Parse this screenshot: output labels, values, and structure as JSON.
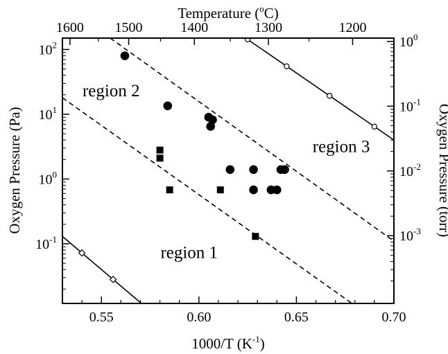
{
  "chart_data": {
    "type": "scatter",
    "xlabel": "1000/T (K",
    "xlabel_sup": "-1",
    "xlabel_tail": ")",
    "ylabel_left": "Oxygen Pressure (Pa)",
    "ylabel_right": "Oxygen Pressure (torr)",
    "top_label_pre": "Temperature (",
    "top_label_sup": "o",
    "top_label_post": "C)",
    "xlim": [
      0.53,
      0.7
    ],
    "ylim_pa": [
      0.012,
      150
    ],
    "x_ticks": [
      {
        "v": 0.55,
        "label": "0.55"
      },
      {
        "v": 0.6,
        "label": "0.60"
      },
      {
        "v": 0.65,
        "label": "0.65"
      },
      {
        "v": 0.7,
        "label": "0.70"
      }
    ],
    "top_ticks": [
      {
        "t": 1600,
        "label": "1600"
      },
      {
        "t": 1500,
        "label": "1500"
      },
      {
        "t": 1400,
        "label": "1400"
      },
      {
        "t": 1300,
        "label": "1300"
      },
      {
        "t": 1200,
        "label": "1200"
      }
    ],
    "left_ticks": [
      {
        "v": 0.1,
        "base": "10",
        "exp": "-1"
      },
      {
        "v": 1,
        "base": "10",
        "exp": "0"
      },
      {
        "v": 10,
        "base": "10",
        "exp": "1"
      },
      {
        "v": 100,
        "base": "10",
        "exp": "2"
      }
    ],
    "right_ticks": [
      {
        "v": 0.001,
        "base": "10",
        "exp": "-3"
      },
      {
        "v": 0.01,
        "base": "10",
        "exp": "-2"
      },
      {
        "v": 0.1,
        "base": "10",
        "exp": "-1"
      },
      {
        "v": 1,
        "base": "10",
        "exp": "0"
      }
    ],
    "series": [
      {
        "marker": "circle",
        "points": [
          {
            "x": 0.562,
            "y": 80
          },
          {
            "x": 0.584,
            "y": 13.5
          },
          {
            "x": 0.605,
            "y": 9
          },
          {
            "x": 0.607,
            "y": 8.2
          },
          {
            "x": 0.606,
            "y": 6.5
          },
          {
            "x": 0.616,
            "y": 1.4
          },
          {
            "x": 0.628,
            "y": 1.4
          },
          {
            "x": 0.628,
            "y": 0.68
          },
          {
            "x": 0.637,
            "y": 0.68
          },
          {
            "x": 0.64,
            "y": 0.68
          },
          {
            "x": 0.642,
            "y": 1.4
          },
          {
            "x": 0.644,
            "y": 1.4
          }
        ]
      },
      {
        "marker": "square",
        "points": [
          {
            "x": 0.58,
            "y": 2.8
          },
          {
            "x": 0.58,
            "y": 2.1
          },
          {
            "x": 0.585,
            "y": 0.68
          },
          {
            "x": 0.611,
            "y": 0.68
          },
          {
            "x": 0.629,
            "y": 0.13
          }
        ]
      }
    ],
    "lines": [
      {
        "style": "solid",
        "markers": "open-diamond",
        "from": {
          "x": 0.53,
          "y": 0.13
        },
        "to": {
          "x": 0.5705,
          "y": 0.012
        },
        "marker_x": [
          0.54,
          0.556
        ]
      },
      {
        "style": "dashed",
        "from": {
          "x": 0.53,
          "y": 18
        },
        "to": {
          "x": 0.6785,
          "y": 0.012
        }
      },
      {
        "style": "dashed",
        "from": {
          "x": 0.5545,
          "y": 150
        },
        "to": {
          "x": 0.7,
          "y": 0.11
        }
      },
      {
        "style": "solid",
        "markers": "open-circle",
        "from": {
          "x": 0.624,
          "y": 150
        },
        "to": {
          "x": 0.7,
          "y": 4.0
        },
        "marker_x": [
          0.625,
          0.645,
          0.667,
          0.69
        ]
      }
    ],
    "annotations": [
      {
        "text": "region 1",
        "x": 0.595,
        "y": 0.06
      },
      {
        "text": "region 2",
        "x": 0.555,
        "y": 19
      },
      {
        "text": "region 3",
        "x": 0.673,
        "y": 2.6
      }
    ]
  }
}
